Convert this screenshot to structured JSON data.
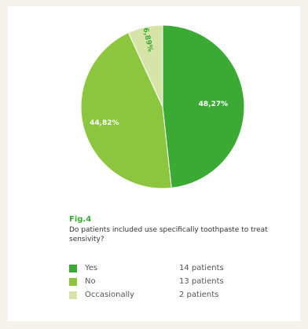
{
  "figure": {
    "label": "Fig.4",
    "question": "Do patients included use specifically toothpaste to treat sensivity?"
  },
  "chart_data": {
    "type": "pie",
    "slices": [
      {
        "name": "Yes",
        "value": 48.27,
        "label": "48,27%",
        "count": "14 patients",
        "color": "#3aaa35"
      },
      {
        "name": "No",
        "value": 44.82,
        "label": "44,82%",
        "count": "13 patients",
        "color": "#8cc63f"
      },
      {
        "name": "Occasionally",
        "value": 6.89,
        "label": "6,89%",
        "count": "2 patients",
        "color": "#d7e4a8"
      }
    ],
    "start_angle_deg": 0,
    "direction": "clockwise",
    "legend_placement": "bottom-left"
  }
}
